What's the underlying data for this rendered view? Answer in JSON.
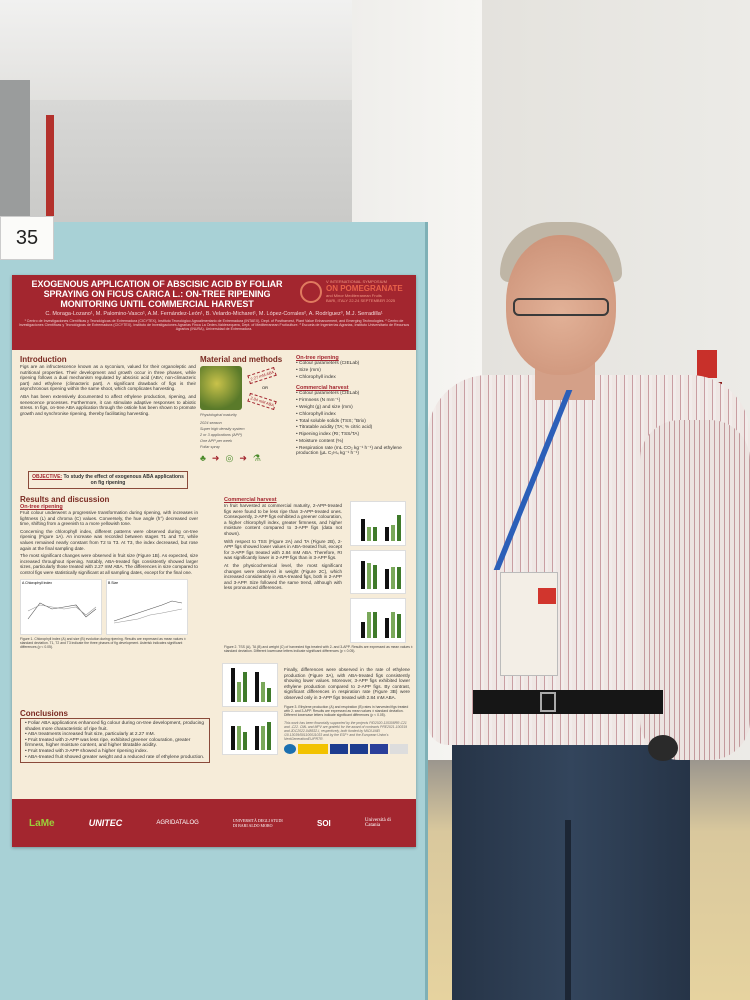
{
  "poster_number": "35",
  "poster": {
    "title": "EXOGENOUS APPLICATION OF ABSCISIC ACID BY FOLIAR SPRAYING ON FICUS CARICA L.: ON-TREE RIPENING MONITORING UNTIL COMMERCIAL HARVEST",
    "authors": "C. Moraga-Lozano¹, M. Palomino-Vasco¹, A.M. Fernández-León¹, B. Velardo-Micharet¹, M. López-Corrales², A. Rodríguez³, M.J. Serradilla¹",
    "affiliations": "¹ Centro de Investigaciones Científicas y Tecnológicas de Extremadura (CICYTEX), Instituto Tecnológico Agroalimentario de Extremadura (INTAEX), Dept. of Postharvest, Plant Value Enhancement, and Emerging Technologies. ² Centro de Investigaciones Científicas y Tecnológicas de Extremadura (CICYTEX), Instituto de Investigaciones Agrarias Finca La Orden-Valdesequera, Dept. of Mediterranean Fruticulture. ³ Escuela de Ingenierías Agrarias, Instituto Universitario de Recursos Agrarios (INURA), Universidad de Extremadura.",
    "conference": {
      "line1": "V INTERNATIONAL SYMPOSIUM",
      "line2": "ON POMEGRANATE",
      "line3": "and Minor Mediterranean Fruits",
      "line4": "BARI, ITALY 22-24 SEPTEMBER 2025"
    },
    "introduction": {
      "heading": "Introduction",
      "p1": "Figs are an infructescence known as a syconium, valued for their organoleptic and nutritional properties. Their development and growth occur in three phases, while ripening follows a dual mechanism regulated by abscisic acid (ABA; non-climacteric part) and ethylene (climacteric part). A significant drawback of figs is their asynchronous ripening within the same shoot, which complicates harvesting.",
      "p2": "ABA has been extensively documented to affect ethylene production, ripening, and senescence processes. Furthermore, it can stimulate adaptive responses to abiotic stress. In figs, on-tree ABA application through the ostiole has been shown to promote growth and synchronise ripening, thereby facilitating harvesting."
    },
    "objective": {
      "label": "OBJECTIVE:",
      "text": "To study the effect of exogenous ABA applications on fig ripening"
    },
    "methods": {
      "heading": "Material and methods",
      "dose1": "2.27 mM ABA",
      "or": "OR",
      "dose2": "2.84 mM ABA",
      "caption": "Physiological maturity",
      "details": [
        "2024 season",
        "Super high density system",
        "2 or 3 applications (APP)",
        "One APP per week",
        "Foliar spray"
      ]
    },
    "on_tree": {
      "heading": "On-tree ripening",
      "items": [
        "Colour parameters (CIELab)",
        "Size (mm)",
        "Chlorophyll index"
      ]
    },
    "commercial": {
      "heading": "Commercial harvest",
      "items": [
        "Colour parameters (CIELab)",
        "Firmness (N mm⁻¹)",
        "Weight (g) and size (mm)",
        "Chlorophyll index",
        "Total soluble solids (TSS; °Brix)",
        "Titratable acidity (TA; % citric acid)",
        "Ripening index (RI; TSS/TA)",
        "Moisture content (%)",
        "Respiration rate (mL CO₂ kg⁻¹ h⁻¹) and ethylene production (µL C₂H₄ kg⁻¹ h⁻¹)"
      ]
    },
    "results": {
      "heading": "Results and discussion",
      "on_tree_heading": "On-tree ripening",
      "p1": "Fruit colour underwent a progressive transformation during ripening, with increases in lightness (L) and chroma (C) values. Conversely, the hue angle (h°) decreased over time, shifting from a greenish to a more yellowish tone.",
      "p2": "Concerning the chlorophyll index, different patterns were observed during on-tree ripening (Figure 1A). An increase was recorded between stages T1 and T2, while values remained nearly constant from T2 to T3. At T3, the index decreased, but rose again at the final sampling date.",
      "p3": "The most significant changes were observed in fruit size (Figure 1B). As expected, size increased throughout ripening. Notably, ABA-treated figs consistently showed larger sizes, particularly those treated with 2.27 mM ABA. The differences in size compared to control figs were statistically significant at all sampling dates, except for the final one.",
      "fig1_a": "A  Chlorophyll index",
      "fig1_b": "B  Size",
      "fig1_caption": "Figure 1. Chlorophyll index (A) and size (B) evolution during ripening. Results are expressed as mean values ± standard deviation. T1, T2 and T3 indicate the three phases of fig development. Asterisk indicates significant differences (p < 0.05).",
      "commercial_heading": "Commercial harvest",
      "c1": "In fruit harvested at commercial maturity, 2-APP-treated figs were found to be less ripe than 3-APP-treated ones. Consequently, 2-APP figs exhibited a greener colouration, a higher chlorophyll index, greater firmness, and higher moisture content compared to 3-APP figs (data not shown).",
      "c2": "With respect to TSS (Figure 2A) and TA (Figure 2B), 2-APP figs showed lower values in ABA-treated fruit, except for 3-APP figs treated with 2.84 mM ABA. Therefore, RI was significantly lower in 2-APP figs than in 3-APP figs.",
      "c3": "At the physicochemical level, the most significant changes were observed in weight (Figure 2C), which increased considerably in ABA-treated figs, both in 2-APP and 3-APP. Size followed the same trend, although with less pronounced differences.",
      "fig2_caption": "Figure 2. TSS (A), TA (B) and weight (C) of harvested figs treated with 2- and 3-APP. Results are expressed as mean values ± standard deviation. Different lowercase letters indicate significant differences (p < 0.05).",
      "c4": "Finally, differences were observed in the rate of ethylene production (Figure 3A), with ABA-treated figs consistently showing lower values. Moreover, 3-APP figs exhibited lower ethylene production compared to 2-APP figs. By contrast, significant differences in respiration rate (Figure 3B) were observed only in 3-APP figs treated with 2.84 mM ABA.",
      "fig3_caption": "Figure 3. Ethylene production (A) and respiration (B) rates in harvested figs treated with 2- and 3-APP. Results are expressed as mean values ± standard deviation. Different lowercase letters indicate significant differences (p < 0.05)."
    },
    "conclusions": {
      "heading": "Conclusions",
      "items": [
        "Foliar ABA applications enhanced fig colour during on-tree development, producing shades more characteristic of ripe fruit.",
        "ABA treatments increased fruit size, particularly at 2.27 mM.",
        "Fruit treated with 2-APP was less ripe, exhibited greener colouration, greater firmness, higher moisture content, and higher titratable acidity.",
        "Fruit treated with 3-APP showed a higher ripening index.",
        "ABA-treated fruit showed greater weight and a reduced rate of ethylene production."
      ]
    },
    "funding": "This work has been financially supported by the projects PID2020-115308RR-C21 and -C22. CML and MPV are grateful for the award of contracts PRE2021-100319 and JDC2022-048532-I, respectively, both funded by MICIU/AEI /10.13039/501100011033 and by the ESF+ and the European Union's NextGenerationEU/PRTR.",
    "footer_logos": [
      "LaMe",
      "UNITEC",
      "AGRIDATALOG",
      "UNIVERSITÀ DEGLI STUDI DI BARI ALDO MORO",
      "SOI",
      "Università di Catania"
    ]
  },
  "colors": {
    "poster_red": "#a3262f",
    "board_blue": "#a8d1d6",
    "lanyard_blue": "#2b5fb8"
  }
}
